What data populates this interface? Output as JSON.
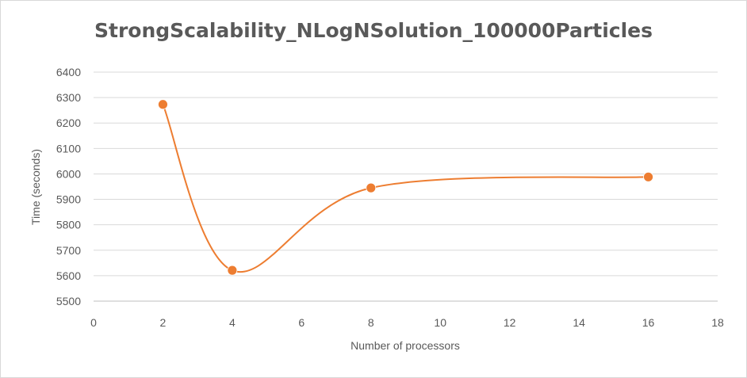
{
  "chart_data": {
    "type": "scatter",
    "title": "StrongScalability_NLogNSolution_100000Particles",
    "xlabel": "Number of processors",
    "ylabel": "Time (seconds)",
    "xlim": [
      0,
      18
    ],
    "ylim": [
      5500,
      6400
    ],
    "x_ticks": [
      0,
      2,
      4,
      6,
      8,
      10,
      12,
      14,
      16,
      18
    ],
    "y_ticks": [
      5500,
      5600,
      5700,
      5800,
      5900,
      6000,
      6100,
      6200,
      6300,
      6400
    ],
    "grid": "horizontal",
    "smoothed_line": true,
    "legend": "none",
    "series": [
      {
        "points": [
          {
            "x": 2,
            "y": 6273
          },
          {
            "x": 4,
            "y": 5621
          },
          {
            "x": 8,
            "y": 5945
          },
          {
            "x": 16,
            "y": 5988
          }
        ]
      }
    ],
    "colors": {
      "series": "#ED7D31",
      "marker_fill": "#ED7D31",
      "grid": "#D9D9D9",
      "axis": "#BFBFBF",
      "text": "#595959"
    }
  }
}
